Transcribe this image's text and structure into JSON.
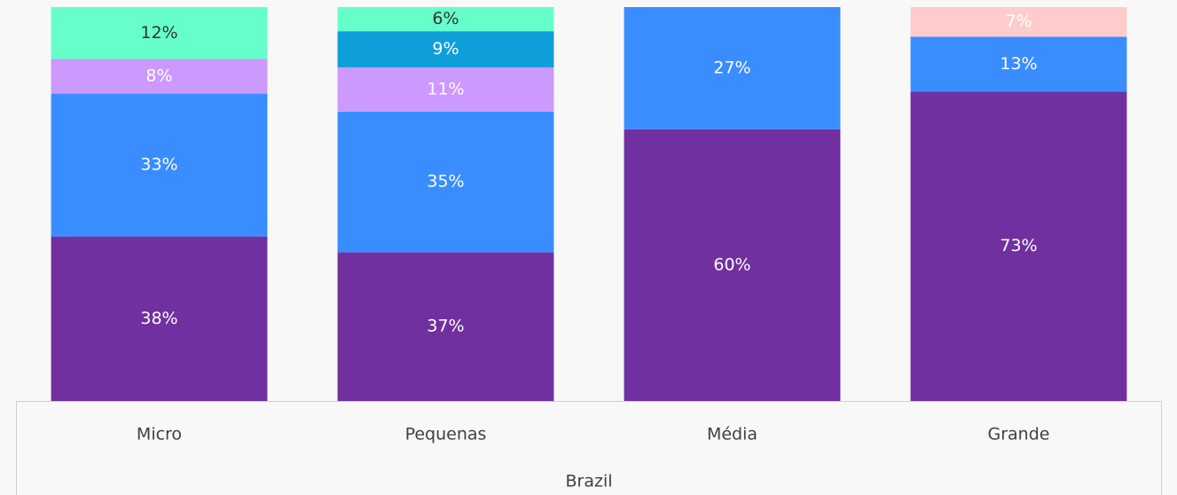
{
  "chart_data": {
    "type": "bar",
    "stacked": "percent",
    "xlabel": "Brazil",
    "categories": [
      "Micro",
      "Pequenas",
      "Média",
      "Grande"
    ],
    "series": [
      {
        "color": "#7030a0",
        "label_color": "#ffffff",
        "values": [
          38,
          37,
          60,
          73
        ],
        "value_labels": [
          "38%",
          "37%",
          "60%",
          "73%"
        ]
      },
      {
        "color": "#3a8dff",
        "label_color": "#ffffff",
        "values": [
          33,
          35,
          27,
          13
        ],
        "value_labels": [
          "33%",
          "35%",
          "27%",
          "13%"
        ]
      },
      {
        "color": "#cc99ff",
        "label_color": "#ffffff",
        "values": [
          8,
          11,
          null,
          null
        ],
        "value_labels": [
          "8%",
          "11%",
          null,
          null
        ]
      },
      {
        "color": "#0e9fd8",
        "label_color": "#ffffff",
        "values": [
          null,
          9,
          null,
          null
        ],
        "value_labels": [
          null,
          "9%",
          null,
          null
        ]
      },
      {
        "color": "#66ffcc",
        "label_color": "#333333",
        "values": [
          12,
          6,
          null,
          null
        ],
        "value_labels": [
          "12%",
          "6%",
          null,
          null
        ]
      },
      {
        "color": "#ffcccc",
        "label_color": "#ffffff",
        "values": [
          null,
          null,
          null,
          7
        ],
        "value_labels": [
          null,
          null,
          null,
          "7%"
        ]
      }
    ]
  }
}
